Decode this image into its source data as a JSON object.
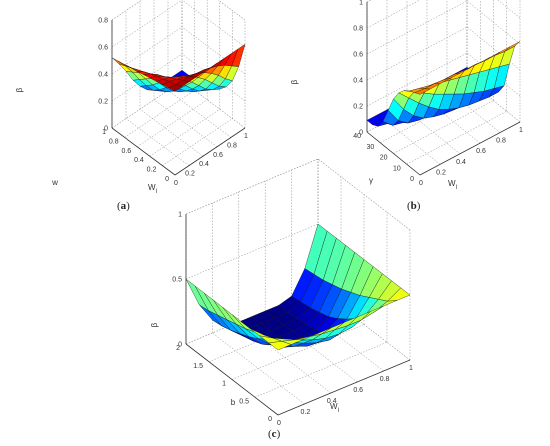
{
  "panel_labels": {
    "a": "a",
    "b": "b",
    "c": "c"
  },
  "chart_data": [
    {
      "id": "a",
      "type": "surface3d",
      "colormap": "jet",
      "xlabel": "W_l",
      "ylabel": "w",
      "zlabel": "β",
      "xlim": [
        0,
        1
      ],
      "ylim": [
        0,
        1
      ],
      "zlim": [
        0,
        0.8
      ],
      "xticks": [
        "0",
        "0.2",
        "0.4",
        "0.6",
        "0.8",
        "1"
      ],
      "yticks": [
        "0",
        "0.2",
        "0.4",
        "0.6",
        "0.8",
        "1"
      ],
      "zticks": [
        "0",
        "0.2",
        "0.4",
        "0.6",
        "0.8"
      ],
      "x": [
        0,
        0.1,
        0.2,
        0.3,
        0.4,
        0.5,
        0.6,
        0.7,
        0.8,
        0.9,
        1.0
      ],
      "y": [
        0,
        0.1,
        0.2,
        0.3,
        0.4,
        0.5,
        0.6,
        0.7,
        0.8,
        0.9,
        1.0
      ],
      "z": [
        [
          0.62,
          0.62,
          0.62,
          0.62,
          0.62,
          0.62,
          0.62,
          0.62,
          0.62,
          0.62,
          0.62
        ],
        [
          0.61,
          0.6,
          0.6,
          0.59,
          0.58,
          0.57,
          0.55,
          0.53,
          0.5,
          0.46,
          0.42
        ],
        [
          0.6,
          0.59,
          0.57,
          0.55,
          0.53,
          0.51,
          0.48,
          0.44,
          0.39,
          0.33,
          0.28
        ],
        [
          0.59,
          0.57,
          0.55,
          0.52,
          0.49,
          0.45,
          0.41,
          0.36,
          0.3,
          0.24,
          0.2
        ],
        [
          0.58,
          0.56,
          0.52,
          0.48,
          0.44,
          0.39,
          0.34,
          0.28,
          0.22,
          0.18,
          0.15
        ],
        [
          0.57,
          0.54,
          0.5,
          0.45,
          0.4,
          0.34,
          0.28,
          0.22,
          0.17,
          0.14,
          0.12
        ],
        [
          0.56,
          0.52,
          0.47,
          0.41,
          0.35,
          0.28,
          0.22,
          0.17,
          0.13,
          0.11,
          0.1
        ],
        [
          0.55,
          0.5,
          0.44,
          0.37,
          0.3,
          0.23,
          0.17,
          0.13,
          0.1,
          0.09,
          0.09
        ],
        [
          0.54,
          0.48,
          0.41,
          0.33,
          0.25,
          0.18,
          0.13,
          0.1,
          0.09,
          0.08,
          0.08
        ],
        [
          0.53,
          0.46,
          0.38,
          0.29,
          0.21,
          0.14,
          0.1,
          0.08,
          0.08,
          0.08,
          0.08
        ],
        [
          0.52,
          0.44,
          0.35,
          0.25,
          0.17,
          0.11,
          0.08,
          0.08,
          0.08,
          0.08,
          0.08
        ]
      ]
    },
    {
      "id": "b",
      "type": "surface3d",
      "colormap": "jet",
      "xlabel": "W_l",
      "ylabel": "γ",
      "zlabel": "β",
      "xlim": [
        0,
        1
      ],
      "ylim": [
        0,
        40
      ],
      "zlim": [
        0,
        1
      ],
      "xticks": [
        "0",
        "0.2",
        "0.4",
        "0.6",
        "0.8",
        "1"
      ],
      "yticks": [
        "0",
        "10",
        "20",
        "30",
        "40"
      ],
      "zticks": [
        "0",
        "0.2",
        "0.4",
        "0.6",
        "0.8",
        "1"
      ],
      "x": [
        0,
        0.1,
        0.2,
        0.3,
        0.4,
        0.5,
        0.6,
        0.7,
        0.8,
        0.9,
        1.0
      ],
      "y": [
        0,
        4,
        8,
        12,
        16,
        20,
        24,
        28,
        32,
        36,
        40
      ],
      "z": [
        [
          0.62,
          0.62,
          0.62,
          0.62,
          0.62,
          0.62,
          0.62,
          0.62,
          0.62,
          0.62,
          0.62
        ],
        [
          0.6,
          0.59,
          0.59,
          0.58,
          0.58,
          0.57,
          0.57,
          0.56,
          0.56,
          0.55,
          0.55
        ],
        [
          0.58,
          0.56,
          0.54,
          0.52,
          0.5,
          0.48,
          0.46,
          0.44,
          0.42,
          0.4,
          0.38
        ],
        [
          0.55,
          0.5,
          0.45,
          0.4,
          0.36,
          0.32,
          0.28,
          0.25,
          0.22,
          0.2,
          0.18
        ],
        [
          0.5,
          0.42,
          0.34,
          0.27,
          0.21,
          0.17,
          0.14,
          0.12,
          0.11,
          0.1,
          0.1
        ],
        [
          0.42,
          0.3,
          0.21,
          0.15,
          0.12,
          0.1,
          0.09,
          0.09,
          0.09,
          0.09,
          0.09
        ],
        [
          0.3,
          0.18,
          0.12,
          0.1,
          0.09,
          0.09,
          0.09,
          0.09,
          0.09,
          0.09,
          0.09
        ],
        [
          0.18,
          0.11,
          0.09,
          0.09,
          0.09,
          0.09,
          0.09,
          0.09,
          0.09,
          0.09,
          0.09
        ],
        [
          0.11,
          0.09,
          0.09,
          0.09,
          0.09,
          0.09,
          0.09,
          0.09,
          0.09,
          0.09,
          0.09
        ],
        [
          0.09,
          0.09,
          0.09,
          0.09,
          0.09,
          0.09,
          0.09,
          0.09,
          0.09,
          0.09,
          0.09
        ],
        [
          0.09,
          0.09,
          0.09,
          0.09,
          0.09,
          0.09,
          0.09,
          0.09,
          0.09,
          0.09,
          0.09
        ]
      ]
    },
    {
      "id": "c",
      "type": "surface3d",
      "colormap": "jet",
      "xlabel": "W_l",
      "ylabel": "b",
      "zlabel": "β",
      "xlim": [
        0,
        1
      ],
      "ylim": [
        0,
        2
      ],
      "zlim": [
        0,
        1
      ],
      "xticks": [
        "0",
        "0.2",
        "0.4",
        "0.6",
        "0.8",
        "1"
      ],
      "yticks": [
        "0",
        "0.5",
        "1",
        "1.5",
        "2"
      ],
      "zticks": [
        "0",
        "0.5",
        "1"
      ],
      "x": [
        0,
        0.1,
        0.2,
        0.3,
        0.4,
        0.5,
        0.6,
        0.7,
        0.8,
        0.9,
        1.0
      ],
      "y": [
        0,
        0.2,
        0.4,
        0.6,
        0.8,
        1.0,
        1.2,
        1.4,
        1.6,
        1.8,
        2.0
      ],
      "z": [
        [
          0.5,
          0.5,
          0.5,
          0.5,
          0.5,
          0.5,
          0.5,
          0.5,
          0.5,
          0.5,
          0.5
        ],
        [
          0.5,
          0.47,
          0.44,
          0.42,
          0.4,
          0.39,
          0.38,
          0.38,
          0.4,
          0.44,
          0.5
        ],
        [
          0.5,
          0.44,
          0.39,
          0.34,
          0.3,
          0.27,
          0.26,
          0.27,
          0.32,
          0.4,
          0.5
        ],
        [
          0.5,
          0.41,
          0.33,
          0.27,
          0.22,
          0.18,
          0.16,
          0.18,
          0.24,
          0.36,
          0.5
        ],
        [
          0.5,
          0.38,
          0.28,
          0.2,
          0.14,
          0.1,
          0.09,
          0.11,
          0.18,
          0.32,
          0.5
        ],
        [
          0.5,
          0.35,
          0.23,
          0.14,
          0.08,
          0.05,
          0.04,
          0.06,
          0.13,
          0.29,
          0.5
        ],
        [
          0.5,
          0.33,
          0.19,
          0.09,
          0.04,
          0.02,
          0.02,
          0.03,
          0.09,
          0.26,
          0.5
        ],
        [
          0.5,
          0.31,
          0.16,
          0.06,
          0.02,
          0.01,
          0.01,
          0.02,
          0.07,
          0.24,
          0.5
        ],
        [
          0.5,
          0.29,
          0.13,
          0.04,
          0.01,
          0.0,
          0.0,
          0.01,
          0.05,
          0.22,
          0.5
        ],
        [
          0.5,
          0.27,
          0.11,
          0.03,
          0.0,
          0.0,
          0.0,
          0.0,
          0.04,
          0.21,
          0.5
        ],
        [
          0.5,
          0.26,
          0.1,
          0.02,
          0.0,
          0.0,
          0.0,
          0.0,
          0.03,
          0.2,
          0.5
        ]
      ]
    }
  ]
}
